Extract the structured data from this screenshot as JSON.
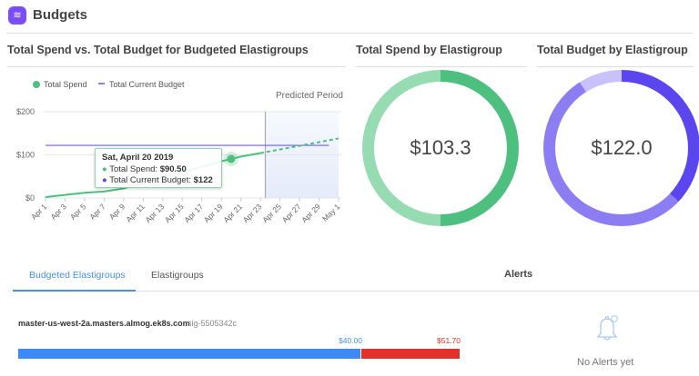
{
  "header": {
    "title": "Budgets",
    "logo_icon": "spot-logo-icon"
  },
  "spend_chart": {
    "title": "Total Spend vs. Total Budget for Budgeted Elastigroups",
    "predicted_label": "Predicted Period",
    "tooltip": {
      "date": "Sat, April 20 2019",
      "spend_label": "Total Spend:",
      "spend_value": "$90.50",
      "budget_label": "Total Current Budget:",
      "budget_value": "$122"
    }
  },
  "chart_data": {
    "type": "line",
    "ylim": [
      0,
      200
    ],
    "y_ticks": [
      "$0",
      "$100",
      "$200"
    ],
    "x_ticks": [
      "Apr 1",
      "Apr 3",
      "Apr 5",
      "Apr 7",
      "Apr 9",
      "Apr 11",
      "Apr 13",
      "Apr 15",
      "Apr 17",
      "Apr 19",
      "Apr 21",
      "Apr 23",
      "Apr 25",
      "Apr 27",
      "Apr 29",
      "May 1"
    ],
    "grid": true,
    "legend_placement": "top-left",
    "series": [
      {
        "name": "Total Spend",
        "color": "#4dbf7f",
        "x_days": [
          1,
          3,
          5,
          7,
          9,
          11,
          13,
          15,
          17,
          19,
          20,
          21,
          23
        ],
        "values": [
          2,
          7,
          12,
          15,
          22,
          35,
          48,
          60,
          72,
          85,
          90.5,
          96,
          104
        ]
      },
      {
        "name": "Total Spend (predicted)",
        "color": "#4dbf7f",
        "x_days": [
          23,
          31
        ],
        "values": [
          104,
          138
        ]
      },
      {
        "name": "Total Current Budget",
        "color": "#6e5cf2",
        "x_days": [
          1,
          30
        ],
        "values": [
          122,
          122
        ]
      }
    ],
    "predicted_start_day": 23.5
  },
  "spend_donut": {
    "title": "Total Spend by Elastigroup",
    "value": "$103.3",
    "colors": [
      "#4dbf7f",
      "#97dbb3"
    ]
  },
  "budget_donut": {
    "title": "Total Budget by Elastigroup",
    "value": "$122.0",
    "colors": [
      "#5a45ee",
      "#8c7ef2",
      "#c9c2fa"
    ]
  },
  "tabs": [
    {
      "label": "Budgeted Elastigroups",
      "active": true
    },
    {
      "label": "Elastigroups",
      "active": false
    }
  ],
  "groups": [
    {
      "name": "master-us-west-2a.masters.almog.ek8s.com",
      "id": "sig-5505342c",
      "spend_label": "$40.00",
      "over_label": "$51.70",
      "spend": 40.0,
      "total": 51.7
    }
  ],
  "alerts": {
    "title": "Alerts",
    "empty_text": "No Alerts yet"
  }
}
